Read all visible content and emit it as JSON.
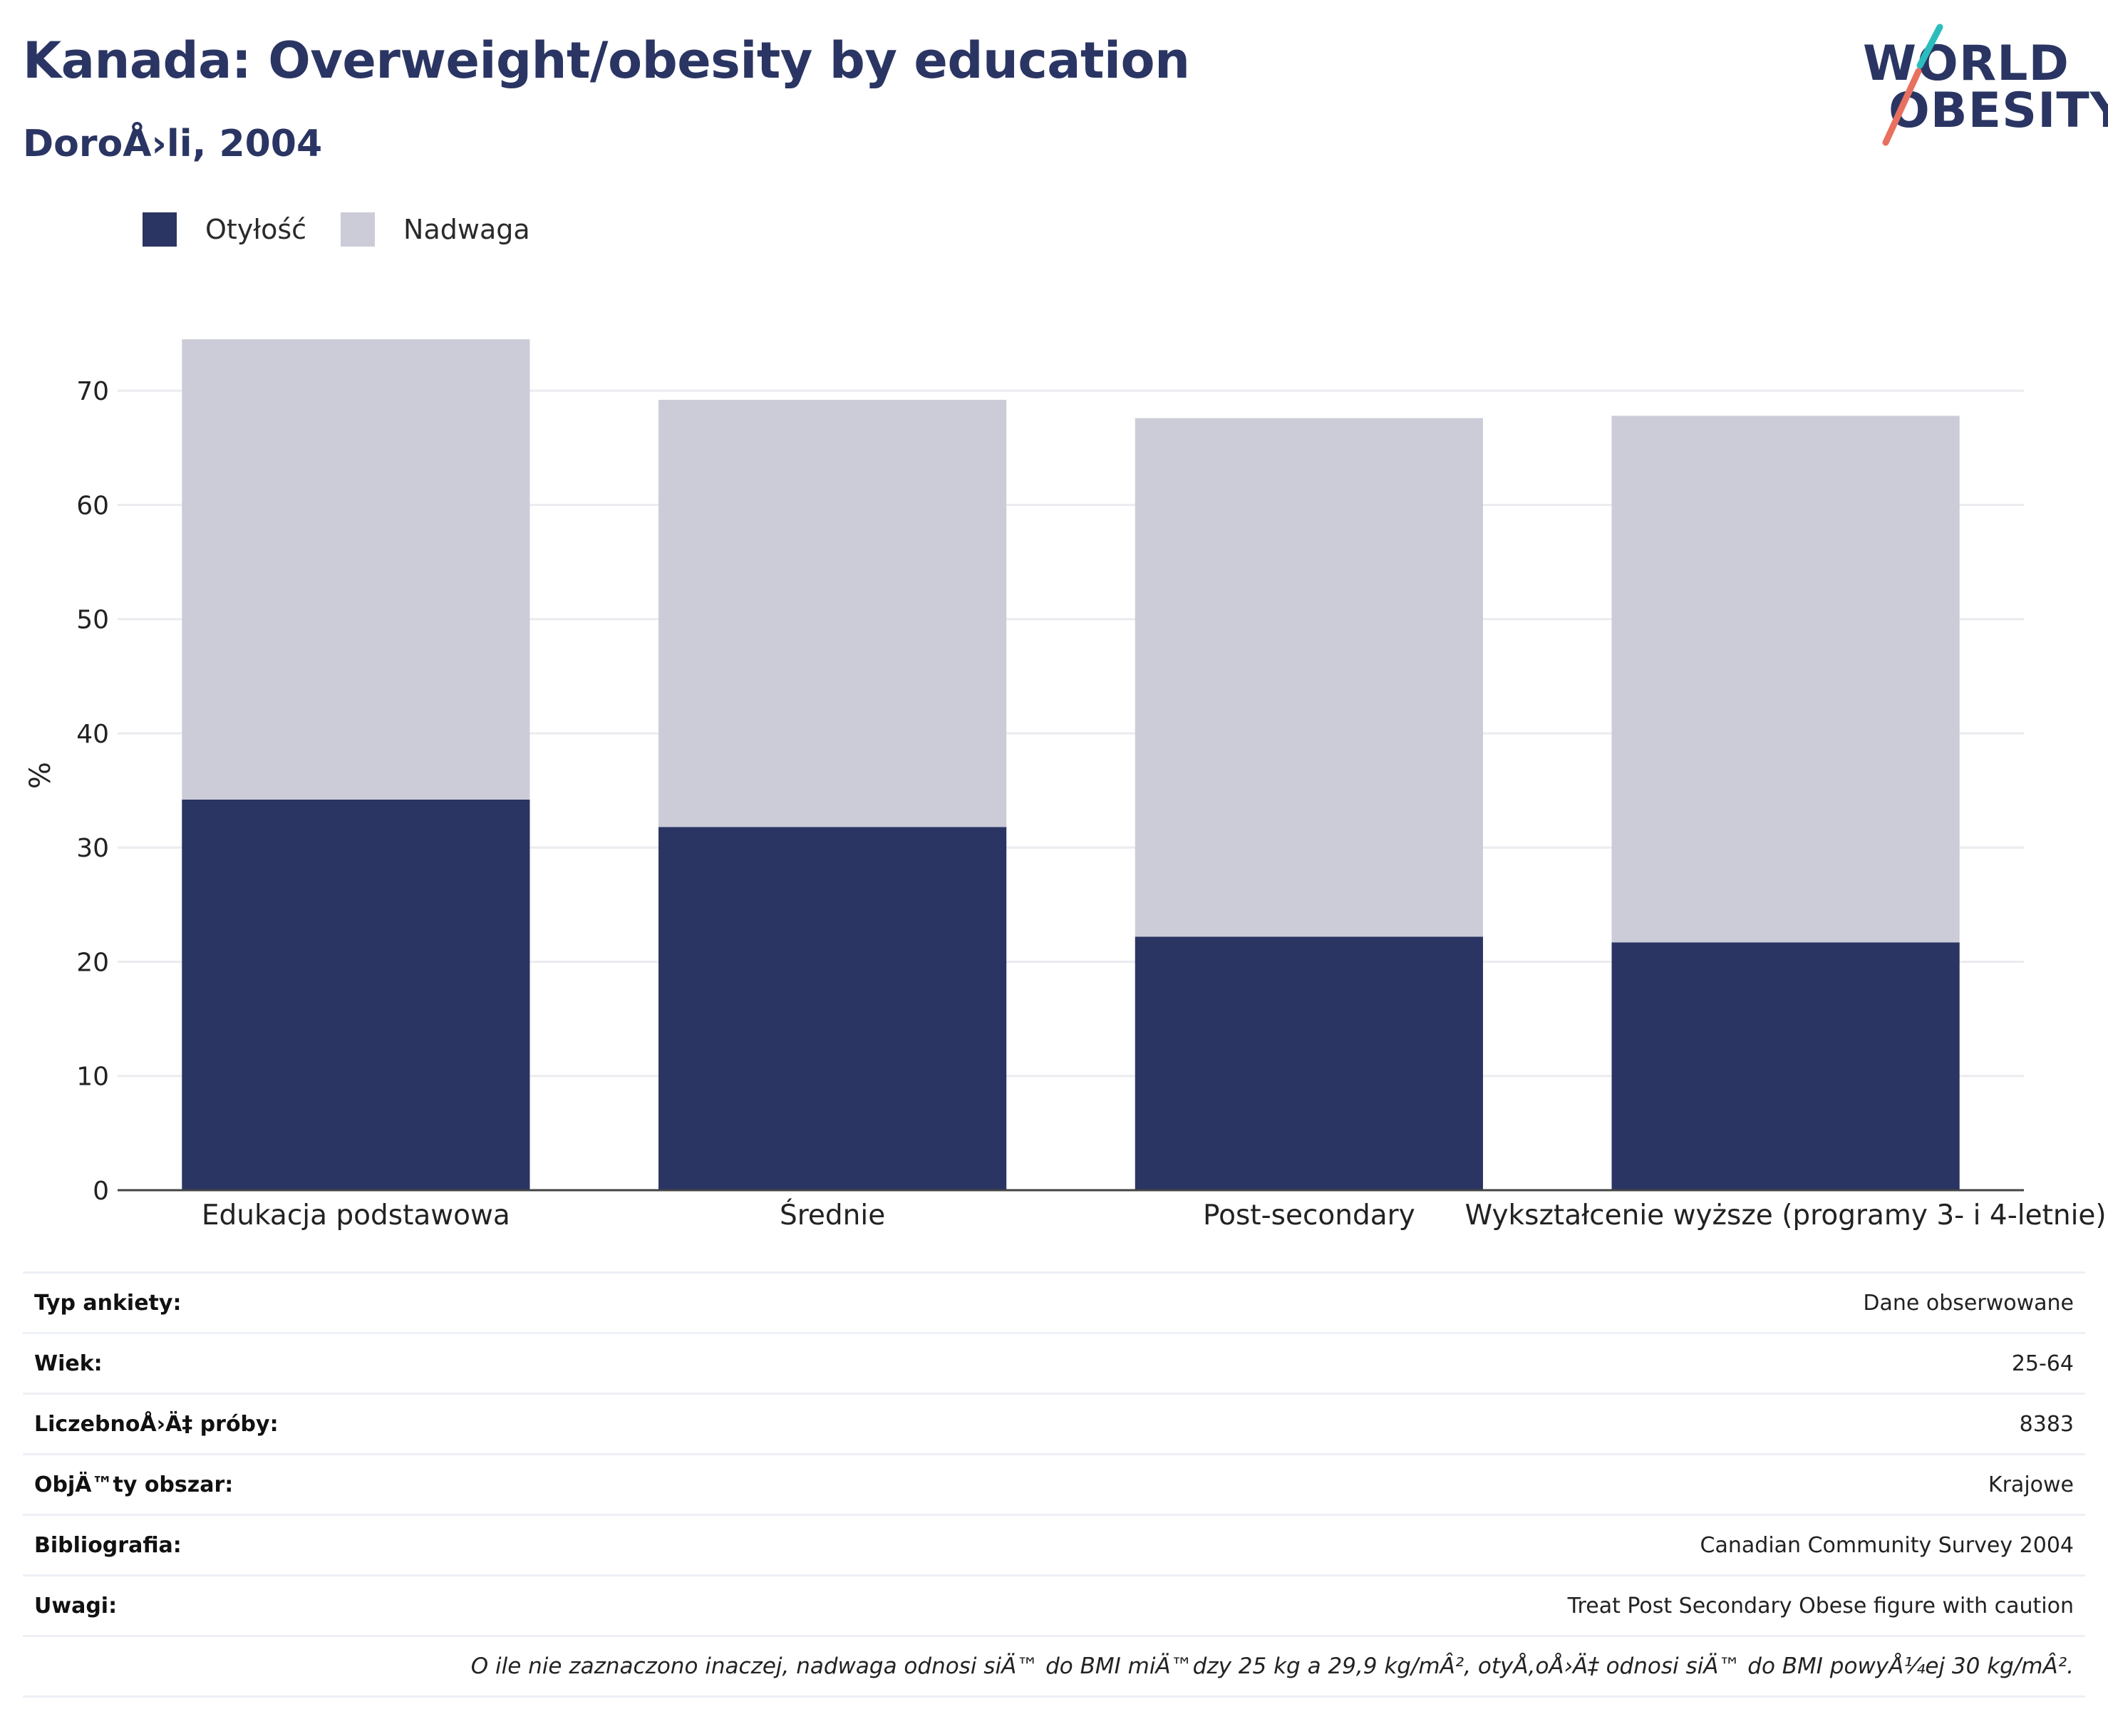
{
  "header": {
    "title": "Kanada: Overweight/obesity by education",
    "subtitle": "DoroÅ›li, 2004"
  },
  "logo": {
    "line1": "WORLD",
    "line2": "OBESITY"
  },
  "colors": {
    "obesity": "#2a3563",
    "overweight": "#cbccd8",
    "accent_teal": "#2bbdbd",
    "accent_coral": "#e8705f"
  },
  "chart_data": {
    "type": "bar",
    "stacked": true,
    "categories": [
      "Edukacja podstawowa",
      "Średnie",
      "Post-secondary",
      "Wykształcenie wyższe (programy 3- i 4-letnie)"
    ],
    "series": [
      {
        "name": "Otyłość",
        "values": [
          34.2,
          31.8,
          22.2,
          21.7
        ]
      },
      {
        "name": "Nadwaga",
        "values": [
          40.3,
          37.4,
          45.4,
          46.1
        ]
      }
    ],
    "ylabel": "%",
    "ylim": [
      0,
      78
    ],
    "yticks": [
      0,
      10,
      20,
      30,
      40,
      50,
      60,
      70
    ],
    "grid": true,
    "legend_position": "top-left"
  },
  "metadata": {
    "rows": [
      {
        "key": "Typ ankiety:",
        "value": "Dane obserwowane"
      },
      {
        "key": "Wiek:",
        "value": "25-64"
      },
      {
        "key": "LiczebnoÅ›Ä‡ próby:",
        "value": "8383"
      },
      {
        "key": "ObjÄ™ty obszar:",
        "value": "Krajowe"
      },
      {
        "key": "Bibliografia:",
        "value": "Canadian Community Survey 2004"
      },
      {
        "key": "Uwagi:",
        "value": "Treat Post Secondary Obese figure with caution"
      }
    ],
    "note": "O ile nie zaznaczono inaczej, nadwaga odnosi siÄ™ do BMI miÄ™dzy 25 kg a 29,9 kg/mÂ², otyÅ‚oÅ›Ä‡ odnosi siÄ™ do BMI powyÅ¼ej 30 kg/mÂ²."
  }
}
